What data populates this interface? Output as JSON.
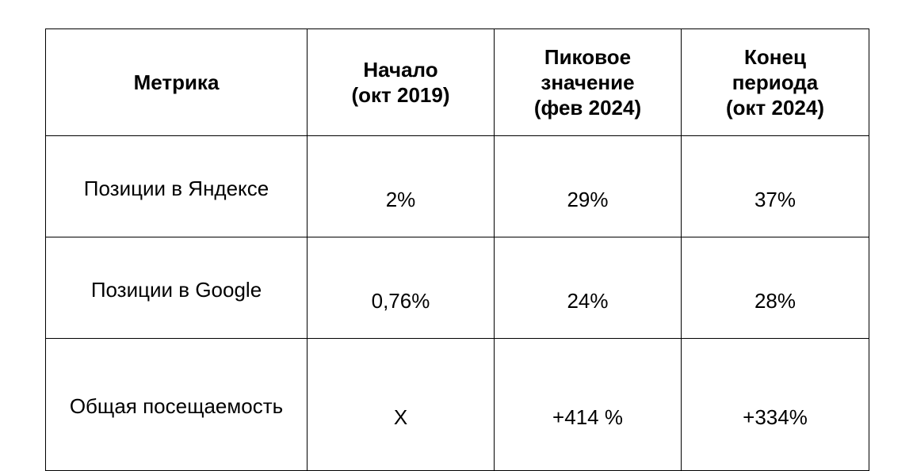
{
  "table": {
    "header": [
      [
        "Метрика"
      ],
      [
        "Начало",
        "(окт 2019)"
      ],
      [
        "Пиковое",
        "значение",
        "(фев 2024)"
      ],
      [
        "Конец",
        "периода",
        "(окт 2024)"
      ]
    ],
    "rows": [
      [
        "Позиции в Яндексе",
        "2%",
        "29%",
        "37%"
      ],
      [
        "Позиции в Google",
        "0,76%",
        "24%",
        "28%"
      ],
      [
        "Общая посещаемость",
        "X",
        "+414 %",
        "+334%"
      ]
    ]
  }
}
